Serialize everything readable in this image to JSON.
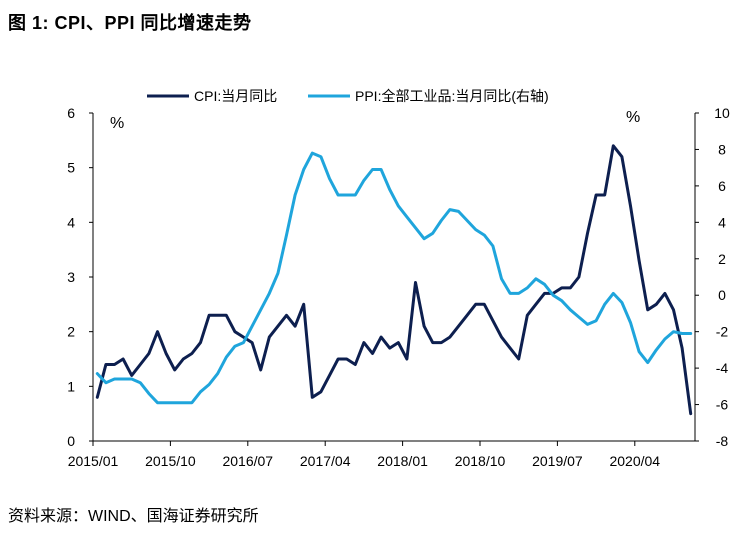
{
  "figure_title": "图 1:    CPI、PPI 同比增速走势",
  "source_note": "资料来源：WIND、国海证券研究所",
  "colors": {
    "cpi": "#0d1f4f",
    "ppi": "#1fa5dc",
    "axis": "#000000"
  },
  "chart_data": {
    "type": "line",
    "title": "CPI、PPI 同比增速走势",
    "x": [
      "2015/01",
      "2015/02",
      "2015/03",
      "2015/04",
      "2015/05",
      "2015/06",
      "2015/07",
      "2015/08",
      "2015/09",
      "2015/10",
      "2015/11",
      "2015/12",
      "2016/01",
      "2016/02",
      "2016/03",
      "2016/04",
      "2016/05",
      "2016/06",
      "2016/07",
      "2016/08",
      "2016/09",
      "2016/10",
      "2016/11",
      "2016/12",
      "2017/01",
      "2017/02",
      "2017/03",
      "2017/04",
      "2017/05",
      "2017/06",
      "2017/07",
      "2017/08",
      "2017/09",
      "2017/10",
      "2017/11",
      "2017/12",
      "2018/01",
      "2018/02",
      "2018/03",
      "2018/04",
      "2018/05",
      "2018/06",
      "2018/07",
      "2018/08",
      "2018/09",
      "2018/10",
      "2018/11",
      "2018/12",
      "2019/01",
      "2019/02",
      "2019/03",
      "2019/04",
      "2019/05",
      "2019/06",
      "2019/07",
      "2019/08",
      "2019/09",
      "2019/10",
      "2019/11",
      "2019/12",
      "2020/01",
      "2020/02",
      "2020/03",
      "2020/04",
      "2020/05",
      "2020/06",
      "2020/07",
      "2020/08",
      "2020/09",
      "2020/10"
    ],
    "x_tick_labels": [
      "2015/01",
      "2015/10",
      "2016/07",
      "2017/04",
      "2018/01",
      "2018/10",
      "2019/07",
      "2020/04"
    ],
    "left_axis": {
      "label": "%",
      "ylim": [
        0,
        6
      ],
      "ticks": [
        "0",
        "1",
        "2",
        "3",
        "4",
        "5",
        "6"
      ]
    },
    "right_axis": {
      "label": "%",
      "ylim": [
        -8,
        10
      ],
      "ticks": [
        "-8",
        "-6",
        "-4",
        "-2",
        "0",
        "2",
        "4",
        "6",
        "8",
        "10"
      ]
    },
    "legend_position": "top-center",
    "series": [
      {
        "name": "CPI:当月同比",
        "axis": "left",
        "values": [
          0.8,
          1.4,
          1.4,
          1.5,
          1.2,
          1.4,
          1.6,
          2.0,
          1.6,
          1.3,
          1.5,
          1.6,
          1.8,
          2.3,
          2.3,
          2.3,
          2.0,
          1.9,
          1.8,
          1.3,
          1.9,
          2.1,
          2.3,
          2.1,
          2.5,
          0.8,
          0.9,
          1.2,
          1.5,
          1.5,
          1.4,
          1.8,
          1.6,
          1.9,
          1.7,
          1.8,
          1.5,
          2.9,
          2.1,
          1.8,
          1.8,
          1.9,
          2.1,
          2.3,
          2.5,
          2.5,
          2.2,
          1.9,
          1.7,
          1.5,
          2.3,
          2.5,
          2.7,
          2.7,
          2.8,
          2.8,
          3.0,
          3.8,
          4.5,
          4.5,
          5.4,
          5.2,
          4.3,
          3.3,
          2.4,
          2.5,
          2.7,
          2.4,
          1.7,
          0.5
        ]
      },
      {
        "name": "PPI:全部工业品:当月同比(右轴)",
        "axis": "right",
        "values": [
          -4.3,
          -4.8,
          -4.6,
          -4.6,
          -4.6,
          -4.8,
          -5.4,
          -5.9,
          -5.9,
          -5.9,
          -5.9,
          -5.9,
          -5.3,
          -4.9,
          -4.3,
          -3.4,
          -2.8,
          -2.6,
          -1.7,
          -0.8,
          0.1,
          1.2,
          3.3,
          5.5,
          6.9,
          7.8,
          7.6,
          6.4,
          5.5,
          5.5,
          5.5,
          6.3,
          6.9,
          6.9,
          5.8,
          4.9,
          4.3,
          3.7,
          3.1,
          3.4,
          4.1,
          4.7,
          4.6,
          4.1,
          3.6,
          3.3,
          2.7,
          0.9,
          0.1,
          0.1,
          0.4,
          0.9,
          0.6,
          0.0,
          -0.3,
          -0.8,
          -1.2,
          -1.6,
          -1.4,
          -0.5,
          0.1,
          -0.4,
          -1.5,
          -3.1,
          -3.7,
          -3.0,
          -2.4,
          -2.0,
          -2.1,
          -2.1
        ]
      }
    ]
  }
}
